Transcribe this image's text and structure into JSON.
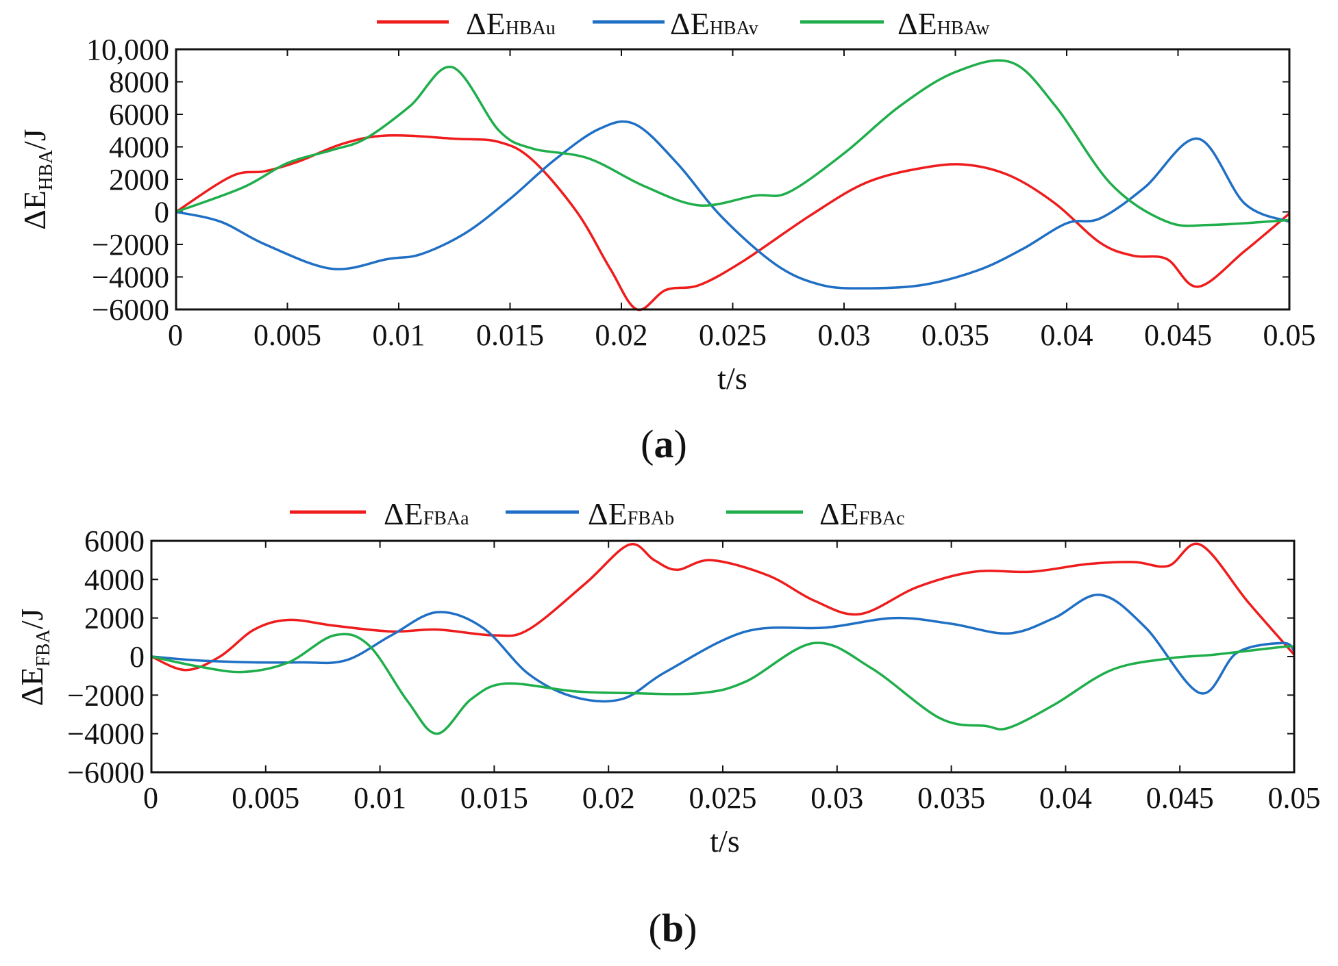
{
  "panels": [
    {
      "label_letter": "a",
      "xlabel": "t/s",
      "ylabel_pre": "ΔE",
      "ylabel_sub": "HBA",
      "ylabel_post": "/J",
      "legend": [
        {
          "sym": "ΔE",
          "sub": "HBAu"
        },
        {
          "sym": "ΔE",
          "sub": "HBAv"
        },
        {
          "sym": "ΔE",
          "sub": "HBAw"
        }
      ],
      "xticks": [
        "0",
        "0.005",
        "0.01",
        "0.015",
        "0.02",
        "0.025",
        "0.03",
        "0.035",
        "0.04",
        "0.045",
        "0.05"
      ],
      "yticks": [
        "10,000",
        "8000",
        "6000",
        "4000",
        "2000",
        "0",
        "−2000",
        "−4000",
        "−6000"
      ]
    },
    {
      "label_letter": "b",
      "xlabel": "t/s",
      "ylabel_pre": "ΔE",
      "ylabel_sub": "FBA",
      "ylabel_post": "/J",
      "legend": [
        {
          "sym": "ΔE",
          "sub": "FBAa"
        },
        {
          "sym": "ΔE",
          "sub": "FBAb"
        },
        {
          "sym": "ΔE",
          "sub": "FBAc"
        }
      ],
      "xticks": [
        "0",
        "0.005",
        "0.01",
        "0.015",
        "0.02",
        "0.025",
        "0.03",
        "0.035",
        "0.04",
        "0.045",
        "0.05"
      ],
      "yticks": [
        "6000",
        "4000",
        "2000",
        "0",
        "−2000",
        "−4000",
        "−6000"
      ]
    }
  ],
  "colors": {
    "red": "#ee1c1c",
    "blue": "#1f6fc4",
    "green": "#1fae4b"
  },
  "chart_data": [
    {
      "type": "line",
      "title": "(a)",
      "xlabel": "t/s",
      "ylabel": "ΔE_HBA/J",
      "xlim": [
        0,
        0.05
      ],
      "ylim": [
        -6000,
        10000
      ],
      "xtick_values": [
        0,
        0.005,
        0.01,
        0.015,
        0.02,
        0.025,
        0.03,
        0.035,
        0.04,
        0.045,
        0.05
      ],
      "ytick_values": [
        10000,
        8000,
        6000,
        4000,
        2000,
        0,
        -2000,
        -4000,
        -6000
      ],
      "legend_position": "top",
      "series": [
        {
          "name": "ΔE_HBAu",
          "color": "red",
          "x": [
            0,
            0.0025,
            0.004,
            0.0055,
            0.0075,
            0.0095,
            0.0125,
            0.0145,
            0.016,
            0.018,
            0.0195,
            0.0207,
            0.022,
            0.0235,
            0.0255,
            0.0285,
            0.031,
            0.0335,
            0.0355,
            0.0375,
            0.0395,
            0.0415,
            0.043,
            0.0445,
            0.0459,
            0.048,
            0.05
          ],
          "y": [
            0,
            2200,
            2500,
            3100,
            4200,
            4700,
            4500,
            4300,
            3200,
            0,
            -3500,
            -6000,
            -4800,
            -4500,
            -3000,
            -200,
            1800,
            2700,
            2900,
            2200,
            500,
            -1900,
            -2700,
            -2900,
            -4600,
            -2400,
            -100
          ]
        },
        {
          "name": "ΔE_HBAv",
          "color": "blue",
          "x": [
            0,
            0.002,
            0.004,
            0.007,
            0.0095,
            0.011,
            0.013,
            0.015,
            0.017,
            0.019,
            0.0206,
            0.0225,
            0.0245,
            0.027,
            0.029,
            0.031,
            0.0335,
            0.036,
            0.038,
            0.04,
            0.0415,
            0.0435,
            0.0459,
            0.048,
            0.05
          ],
          "y": [
            0,
            -600,
            -2000,
            -3500,
            -2900,
            -2600,
            -1300,
            800,
            3200,
            5100,
            5400,
            3000,
            -300,
            -3300,
            -4500,
            -4700,
            -4500,
            -3600,
            -2300,
            -700,
            -400,
            1500,
            4500,
            500,
            -600
          ]
        },
        {
          "name": "ΔE_HBAw",
          "color": "green",
          "x": [
            0,
            0.003,
            0.005,
            0.007,
            0.0085,
            0.0105,
            0.0124,
            0.0145,
            0.016,
            0.0185,
            0.021,
            0.0235,
            0.026,
            0.0275,
            0.03,
            0.0325,
            0.035,
            0.0375,
            0.0395,
            0.042,
            0.0445,
            0.0465,
            0.05
          ],
          "y": [
            0,
            1500,
            3000,
            3800,
            4500,
            6500,
            8900,
            5000,
            3900,
            3300,
            1600,
            400,
            1000,
            1200,
            3600,
            6500,
            8600,
            9200,
            6500,
            1700,
            -600,
            -800,
            -500
          ]
        }
      ]
    },
    {
      "type": "line",
      "title": "(b)",
      "xlabel": "t/s",
      "ylabel": "ΔE_FBA/J",
      "xlim": [
        0,
        0.05
      ],
      "ylim": [
        -6000,
        6000
      ],
      "xtick_values": [
        0,
        0.005,
        0.01,
        0.015,
        0.02,
        0.025,
        0.03,
        0.035,
        0.04,
        0.045,
        0.05
      ],
      "ytick_values": [
        6000,
        4000,
        2000,
        0,
        -2000,
        -4000,
        -6000
      ],
      "legend_position": "top",
      "series": [
        {
          "name": "ΔE_FBAa",
          "color": "red",
          "x": [
            0,
            0.0015,
            0.003,
            0.0045,
            0.006,
            0.008,
            0.0105,
            0.0125,
            0.015,
            0.0165,
            0.019,
            0.0209,
            0.022,
            0.023,
            0.0245,
            0.027,
            0.029,
            0.031,
            0.0335,
            0.036,
            0.0385,
            0.041,
            0.043,
            0.0445,
            0.0459,
            0.048,
            0.05
          ],
          "y": [
            0,
            -700,
            0,
            1400,
            1900,
            1600,
            1300,
            1400,
            1100,
            1400,
            3800,
            5800,
            5000,
            4500,
            5000,
            4200,
            2900,
            2200,
            3600,
            4400,
            4400,
            4800,
            4900,
            4700,
            5800,
            2800,
            100
          ]
        },
        {
          "name": "ΔE_FBAb",
          "color": "blue",
          "x": [
            0,
            0.002,
            0.0045,
            0.0065,
            0.0085,
            0.0105,
            0.0125,
            0.0145,
            0.0165,
            0.0185,
            0.0206,
            0.0225,
            0.026,
            0.0295,
            0.0325,
            0.035,
            0.0375,
            0.0395,
            0.0415,
            0.0435,
            0.0459,
            0.0475,
            0.0495,
            0.05
          ],
          "y": [
            0,
            -200,
            -300,
            -300,
            -200,
            1100,
            2300,
            1500,
            -900,
            -2100,
            -2200,
            -800,
            1300,
            1500,
            2000,
            1700,
            1200,
            2000,
            3200,
            1500,
            -1900,
            200,
            700,
            300
          ]
        },
        {
          "name": "ΔE_FBAc",
          "color": "green",
          "x": [
            0,
            0.002,
            0.004,
            0.006,
            0.008,
            0.0095,
            0.0112,
            0.0125,
            0.014,
            0.0155,
            0.0185,
            0.021,
            0.024,
            0.026,
            0.029,
            0.0315,
            0.0345,
            0.0365,
            0.0375,
            0.0395,
            0.042,
            0.0445,
            0.0465,
            0.0495,
            0.05
          ],
          "y": [
            0,
            -500,
            -800,
            -300,
            1100,
            600,
            -2300,
            -4000,
            -2200,
            -1400,
            -1800,
            -1900,
            -1900,
            -1300,
            700,
            -600,
            -3200,
            -3600,
            -3700,
            -2500,
            -700,
            -100,
            100,
            500,
            500
          ]
        }
      ]
    }
  ]
}
